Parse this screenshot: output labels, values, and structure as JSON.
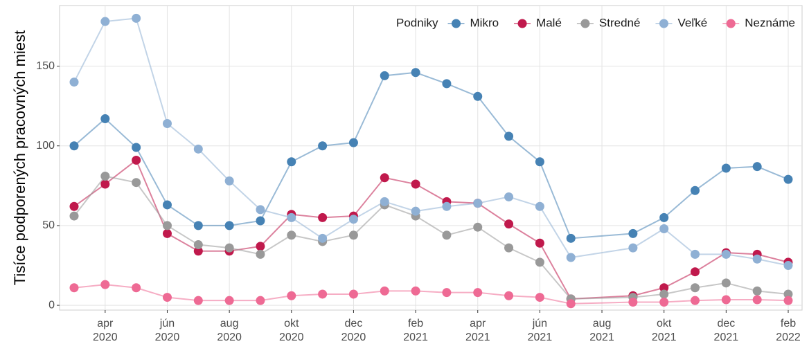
{
  "chart_data": {
    "type": "line",
    "y_label": "Tisíce podporených pracovných miest",
    "legend_title": "Podniky",
    "legend_position": "top-right",
    "grid": true,
    "x": [
      "2020-03",
      "2020-04",
      "2020-05",
      "2020-06",
      "2020-07",
      "2020-08",
      "2020-09",
      "2020-10",
      "2020-11",
      "2020-12",
      "2021-01",
      "2021-02",
      "2021-03",
      "2021-04",
      "2021-05",
      "2021-06",
      "2021-07",
      "2021-09",
      "2021-10",
      "2021-11",
      "2021-12",
      "2022-01",
      "2022-02"
    ],
    "xlim": [
      "2020-03",
      "2022-02"
    ],
    "xticks": [
      {
        "value": "2020-04",
        "label": "apr 2020"
      },
      {
        "value": "2020-06",
        "label": "jún 2020"
      },
      {
        "value": "2020-08",
        "label": "aug 2020"
      },
      {
        "value": "2020-10",
        "label": "okt 2020"
      },
      {
        "value": "2020-12",
        "label": "dec 2020"
      },
      {
        "value": "2021-02",
        "label": "feb 2021"
      },
      {
        "value": "2021-04",
        "label": "apr 2021"
      },
      {
        "value": "2021-06",
        "label": "jún 2021"
      },
      {
        "value": "2021-08",
        "label": "aug 2021"
      },
      {
        "value": "2021-10",
        "label": "okt 2021"
      },
      {
        "value": "2021-12",
        "label": "dec 2021"
      },
      {
        "value": "2022-02",
        "label": "feb 2022"
      }
    ],
    "ylim": [
      -3,
      188
    ],
    "yticks": [
      0,
      50,
      100,
      150
    ],
    "series": [
      {
        "name": "Mikro",
        "color": "#4682b4",
        "values": [
          100,
          117,
          99,
          63,
          50,
          50,
          53,
          90,
          100,
          102,
          144,
          146,
          139,
          131,
          106,
          90,
          42,
          45,
          55,
          72,
          86,
          87,
          79
        ]
      },
      {
        "name": "Malé",
        "color": "#c0194c",
        "values": [
          62,
          76,
          91,
          45,
          34,
          34,
          37,
          57,
          55,
          56,
          80,
          76,
          65,
          64,
          51,
          39,
          4,
          6,
          11,
          21,
          33,
          32,
          27
        ]
      },
      {
        "name": "Stredné",
        "color": "#999999",
        "values": [
          56,
          81,
          77,
          50,
          38,
          36,
          32,
          44,
          40,
          44,
          63,
          56,
          44,
          49,
          36,
          27,
          4,
          5,
          7,
          11,
          14,
          9,
          7
        ]
      },
      {
        "name": "Veľké",
        "color": "#8fb0d4",
        "values": [
          140,
          178,
          180,
          114,
          98,
          78,
          60,
          55,
          42,
          54,
          65,
          59,
          62,
          64,
          68,
          62,
          30,
          36,
          48,
          32,
          32,
          29,
          25
        ]
      },
      {
        "name": "Neznáme",
        "color": "#ee6a94",
        "values": [
          11,
          13,
          11,
          5,
          3,
          3,
          3,
          6,
          7,
          7,
          9,
          9,
          8,
          8,
          6,
          5,
          1,
          2,
          2,
          3,
          3.5,
          3.5,
          3
        ]
      }
    ]
  }
}
